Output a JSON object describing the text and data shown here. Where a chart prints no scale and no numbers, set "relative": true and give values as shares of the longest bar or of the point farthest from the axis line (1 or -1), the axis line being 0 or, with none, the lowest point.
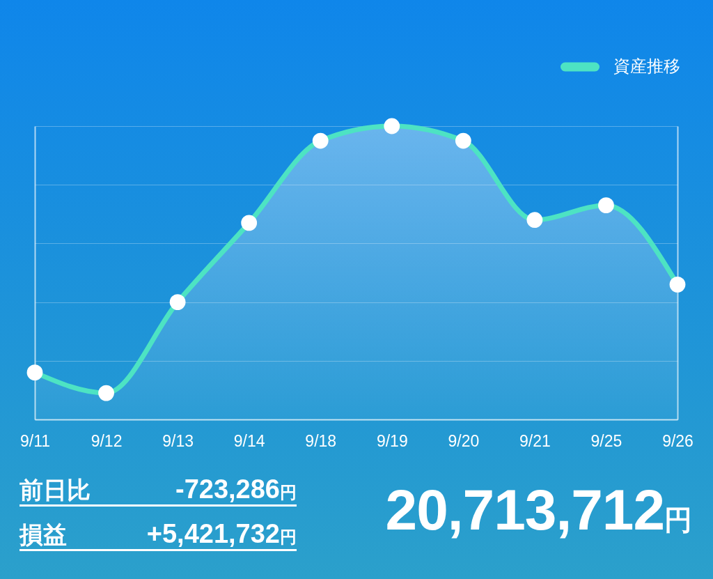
{
  "chart_data": {
    "type": "area",
    "categories": [
      "9/11",
      "9/12",
      "9/13",
      "9/14",
      "9/18",
      "9/19",
      "9/20",
      "9/21",
      "9/25",
      "9/26"
    ],
    "series": [
      {
        "name": "資産推移",
        "color": "#4de3c3",
        "values": [
          0.16,
          0.09,
          0.4,
          0.67,
          0.95,
          1,
          0.95,
          0.68,
          0.73,
          0.46
        ]
      }
    ],
    "relative": true,
    "grid": "y",
    "legend": "top right",
    "marker": "circle",
    "tick_labels": "x",
    "annotations": [
      "前日比",
      "-723,286円",
      "損益",
      "+5,421,732円",
      "20,713,712円"
    ]
  }
}
